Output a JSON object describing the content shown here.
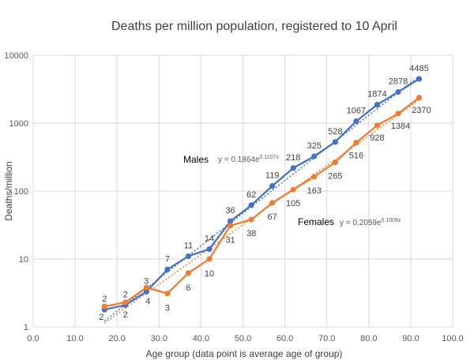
{
  "chart_data": {
    "type": "scatter",
    "title": "Deaths per million population, registered to 10 April",
    "xlabel": "Age group (data point is average age of group)",
    "ylabel": "Deaths/million",
    "xlim": [
      0,
      100
    ],
    "ylim": [
      1,
      10000
    ],
    "y_scale": "log",
    "grid": true,
    "x_ticks": [
      "0.0",
      "10.0",
      "20.0",
      "30.0",
      "40.0",
      "50.0",
      "60.0",
      "70.0",
      "80.0",
      "90.0",
      "100.0"
    ],
    "x_tick_values": [
      0,
      10,
      20,
      30,
      40,
      50,
      60,
      70,
      80,
      90,
      100
    ],
    "y_ticks": [
      "1",
      "10",
      "100",
      "1000",
      "10000"
    ],
    "y_tick_values": [
      1,
      10,
      100,
      1000,
      10000
    ],
    "x": [
      17,
      22,
      27,
      32,
      37,
      42,
      47,
      52,
      57,
      62,
      67,
      72,
      77,
      82,
      87,
      92
    ],
    "series": [
      {
        "name": "Males",
        "color": "#4472C4",
        "values": [
          1.8,
          2.1,
          3.3,
          7,
          11,
          14,
          36,
          62,
          119,
          218,
          325,
          528,
          1067,
          1874,
          2878,
          4485
        ],
        "labels": [
          "2",
          "2",
          "3",
          "7",
          "11",
          "14",
          "36",
          "62",
          "119",
          "218",
          "325",
          "528",
          "1067",
          "1874",
          "2878",
          "4485"
        ],
        "trendline": {
          "a": 0.1864,
          "b": 0.1107,
          "equation_base": "y = 0.1864e",
          "equation_exp": "0.1107x"
        }
      },
      {
        "name": "Females",
        "color": "#ED7D31",
        "values": [
          2.0,
          2.3,
          3.8,
          3.1,
          6.2,
          10,
          31,
          38,
          67,
          105,
          163,
          265,
          516,
          928,
          1384,
          2370
        ],
        "labels": [
          "2",
          "2",
          "4",
          "3",
          "6",
          "10",
          "31",
          "38",
          "67",
          "105",
          "163",
          "265",
          "516",
          "928",
          "1384",
          "2370"
        ],
        "trendline": {
          "a": 0.2059,
          "b": 0.1008,
          "equation_base": "y = 0.2059e",
          "equation_exp": "0.1008x"
        }
      }
    ]
  }
}
